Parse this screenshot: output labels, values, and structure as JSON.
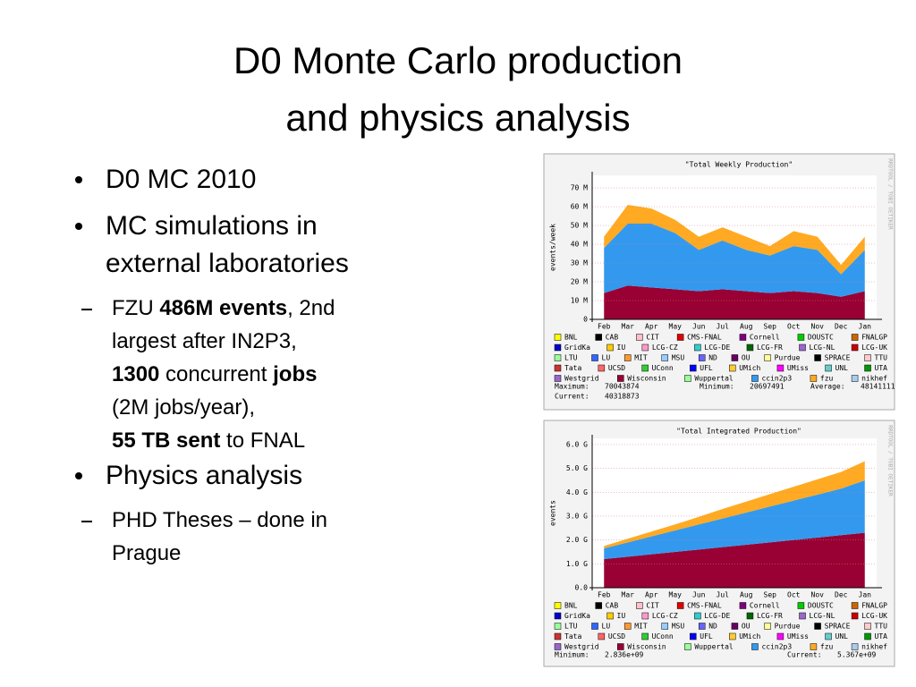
{
  "slide": {
    "title": [
      "D0 Monte Carlo production",
      "and physics analysis"
    ],
    "bullets": [
      {
        "text": "D0 MC 2010"
      },
      {
        "text": "MC simulations in external laboratories",
        "sub": [
          {
            "lines": [
              [
                {
                  "text": "FZU "
                },
                {
                  "text": "486M events",
                  "bold": true
                },
                {
                  "text": ", 2nd"
                }
              ],
              [
                {
                  "text": "largest after IN2P3,"
                }
              ],
              [
                {
                  "text": "1300",
                  "bold": true
                },
                {
                  "text": " concurrent "
                },
                {
                  "text": "jobs",
                  "bold": true
                }
              ],
              [
                {
                  "text": "(2M jobs/year),"
                }
              ],
              [
                {
                  "text": "55 TB sent",
                  "bold": true
                },
                {
                  "text": " to FNAL"
                }
              ]
            ]
          }
        ]
      },
      {
        "text": "Physics analysis",
        "sub": [
          {
            "lines": [
              [
                {
                  "text": "PHD Theses – done in Prague"
                }
              ]
            ]
          }
        ]
      }
    ]
  },
  "chart_data": [
    {
      "type": "area",
      "stacked": true,
      "title": "\"Total Weekly Production\"",
      "y_label": "events/week",
      "side_label": "RRDTOOL / TOBI OETIKER",
      "categories": [
        "Feb",
        "Mar",
        "Apr",
        "May",
        "Jun",
        "Jul",
        "Aug",
        "Sep",
        "Oct",
        "Nov",
        "Dec",
        "Jan"
      ],
      "series": [
        {
          "color": "#990033",
          "values": [
            14,
            18,
            17,
            16,
            15,
            16,
            15,
            14,
            15,
            14,
            12,
            15
          ]
        },
        {
          "color": "#3399ee",
          "values": [
            24,
            33,
            34,
            30,
            22,
            26,
            22,
            20,
            24,
            23,
            12,
            22
          ]
        },
        {
          "color": "#ffaa22",
          "values": [
            6,
            10,
            8,
            7,
            7,
            7,
            7,
            5,
            8,
            7,
            5,
            7
          ]
        }
      ],
      "ylim": [
        0,
        76.7
      ],
      "yticks": [
        0,
        {
          "value": 10,
          "label": "10 M"
        },
        {
          "value": 20,
          "label": "20 M"
        },
        {
          "value": 30,
          "label": "30 M"
        },
        {
          "value": 40,
          "label": "40 M"
        },
        {
          "value": 50,
          "label": "50 M"
        },
        {
          "value": 60,
          "label": "60 M"
        },
        {
          "value": 70,
          "label": "70 M"
        }
      ],
      "grid": true,
      "legend": [
        {
          "name": "BNL",
          "color": "#ffff00"
        },
        {
          "name": "CAB",
          "color": "#000000"
        },
        {
          "name": "CIT",
          "color": "#ffc0cb"
        },
        {
          "name": "CMS-FNAL",
          "color": "#e00000"
        },
        {
          "name": "Cornell",
          "color": "#800080"
        },
        {
          "name": "DOUSTC",
          "color": "#00cc00"
        },
        {
          "name": "FNALGP",
          "color": "#cc6600"
        },
        {
          "name": "GridKa",
          "color": "#0000cc"
        },
        {
          "name": "IU",
          "color": "#ffcc00"
        },
        {
          "name": "LCG-CZ",
          "color": "#ff99cc"
        },
        {
          "name": "LCG-DE",
          "color": "#33cccc"
        },
        {
          "name": "LCG-FR",
          "color": "#006600"
        },
        {
          "name": "LCG-NL",
          "color": "#9966cc"
        },
        {
          "name": "LCG-UK",
          "color": "#cc0000"
        },
        {
          "name": "LTU",
          "color": "#99ff99"
        },
        {
          "name": "LU",
          "color": "#3366ff"
        },
        {
          "name": "MIT",
          "color": "#ff9933"
        },
        {
          "name": "MSU",
          "color": "#99ccff"
        },
        {
          "name": "ND",
          "color": "#6666ff"
        },
        {
          "name": "OU",
          "color": "#660066"
        },
        {
          "name": "Purdue",
          "color": "#ffff99"
        },
        {
          "name": "SPRACE",
          "color": "#000000"
        },
        {
          "name": "TTU",
          "color": "#ffcccc"
        },
        {
          "name": "Tata",
          "color": "#cc3333"
        },
        {
          "name": "UCSD",
          "color": "#ff6666"
        },
        {
          "name": "UConn",
          "color": "#33cc33"
        },
        {
          "name": "UFL",
          "color": "#0000ff"
        },
        {
          "name": "UMich",
          "color": "#ffcc33"
        },
        {
          "name": "UMiss",
          "color": "#ff00ff"
        },
        {
          "name": "UNL",
          "color": "#66cccc"
        },
        {
          "name": "UTA",
          "color": "#009900"
        },
        {
          "name": "Westgrid",
          "color": "#9966cc"
        },
        {
          "name": "Wisconsin",
          "color": "#990033"
        },
        {
          "name": "Wuppertal",
          "color": "#99ff99"
        },
        {
          "name": "ccin2p3",
          "color": "#3399ee"
        },
        {
          "name": "fzu",
          "color": "#ffaa22"
        },
        {
          "name": "nikhef",
          "color": "#aaccee"
        }
      ],
      "stats": [
        {
          "label": "Maximum:",
          "value": 70043874
        },
        {
          "label": "Minimum:",
          "value": 20697491
        },
        {
          "label": "Average:",
          "value": 48141111
        },
        {
          "label": "Current:",
          "value": 40318873
        }
      ]
    },
    {
      "type": "area",
      "stacked": true,
      "title": "\"Total Integrated Production\"",
      "y_label": "events",
      "side_label": "RRDTOOL / TOBI OETIKER",
      "categories": [
        "Feb",
        "Mar",
        "Apr",
        "May",
        "Jun",
        "Jul",
        "Aug",
        "Sep",
        "Oct",
        "Nov",
        "Dec",
        "Jan"
      ],
      "series": [
        {
          "color": "#990033",
          "values": [
            1.2,
            1.3,
            1.4,
            1.5,
            1.6,
            1.7,
            1.8,
            1.9,
            2.0,
            2.1,
            2.2,
            2.3
          ]
        },
        {
          "color": "#3399ee",
          "values": [
            0.45,
            0.6,
            0.75,
            0.9,
            1.05,
            1.2,
            1.35,
            1.5,
            1.65,
            1.8,
            1.95,
            2.2
          ]
        },
        {
          "color": "#ffaa22",
          "values": [
            0.1,
            0.15,
            0.2,
            0.25,
            0.32,
            0.4,
            0.46,
            0.52,
            0.58,
            0.64,
            0.7,
            0.8
          ]
        }
      ],
      "ylim": [
        0,
        6.26
      ],
      "yticks": [
        {
          "value": 0,
          "label": "0.0"
        },
        {
          "value": 1,
          "label": "1.0 G"
        },
        {
          "value": 2,
          "label": "2.0 G"
        },
        {
          "value": 3,
          "label": "3.0 G"
        },
        {
          "value": 4,
          "label": "4.0 G"
        },
        {
          "value": 5,
          "label": "5.0 G"
        },
        {
          "value": 6,
          "label": "6.0 G"
        }
      ],
      "grid": true,
      "legend": [
        {
          "name": "BNL",
          "color": "#ffff00"
        },
        {
          "name": "CAB",
          "color": "#000000"
        },
        {
          "name": "CIT",
          "color": "#ffc0cb"
        },
        {
          "name": "CMS-FNAL",
          "color": "#e00000"
        },
        {
          "name": "Cornell",
          "color": "#800080"
        },
        {
          "name": "DOUSTC",
          "color": "#00cc00"
        },
        {
          "name": "FNALGP",
          "color": "#cc6600"
        },
        {
          "name": "GridKa",
          "color": "#0000cc"
        },
        {
          "name": "IU",
          "color": "#ffcc00"
        },
        {
          "name": "LCG-CZ",
          "color": "#ff99cc"
        },
        {
          "name": "LCG-DE",
          "color": "#33cccc"
        },
        {
          "name": "LCG-FR",
          "color": "#006600"
        },
        {
          "name": "LCG-NL",
          "color": "#9966cc"
        },
        {
          "name": "LCG-UK",
          "color": "#cc0000"
        },
        {
          "name": "LTU",
          "color": "#99ff99"
        },
        {
          "name": "LU",
          "color": "#3366ff"
        },
        {
          "name": "MIT",
          "color": "#ff9933"
        },
        {
          "name": "MSU",
          "color": "#99ccff"
        },
        {
          "name": "ND",
          "color": "#6666ff"
        },
        {
          "name": "OU",
          "color": "#660066"
        },
        {
          "name": "Purdue",
          "color": "#ffff99"
        },
        {
          "name": "SPRACE",
          "color": "#000000"
        },
        {
          "name": "TTU",
          "color": "#ffcccc"
        },
        {
          "name": "Tata",
          "color": "#cc3333"
        },
        {
          "name": "UCSD",
          "color": "#ff6666"
        },
        {
          "name": "UConn",
          "color": "#33cc33"
        },
        {
          "name": "UFL",
          "color": "#0000ff"
        },
        {
          "name": "UMich",
          "color": "#ffcc33"
        },
        {
          "name": "UMiss",
          "color": "#ff00ff"
        },
        {
          "name": "UNL",
          "color": "#66cccc"
        },
        {
          "name": "UTA",
          "color": "#009900"
        },
        {
          "name": "Westgrid",
          "color": "#9966cc"
        },
        {
          "name": "Wisconsin",
          "color": "#990033"
        },
        {
          "name": "Wuppertal",
          "color": "#99ff99"
        },
        {
          "name": "ccin2p3",
          "color": "#3399ee"
        },
        {
          "name": "fzu",
          "color": "#ffaa22"
        },
        {
          "name": "nikhef",
          "color": "#aaccee"
        }
      ],
      "stats": [
        {
          "label": "Minimum:",
          "value": 2836000000,
          "value_label": "2.836e+09"
        },
        {
          "label": "Current:",
          "value": 5367000000,
          "value_label": "5.367e+09"
        }
      ]
    }
  ]
}
